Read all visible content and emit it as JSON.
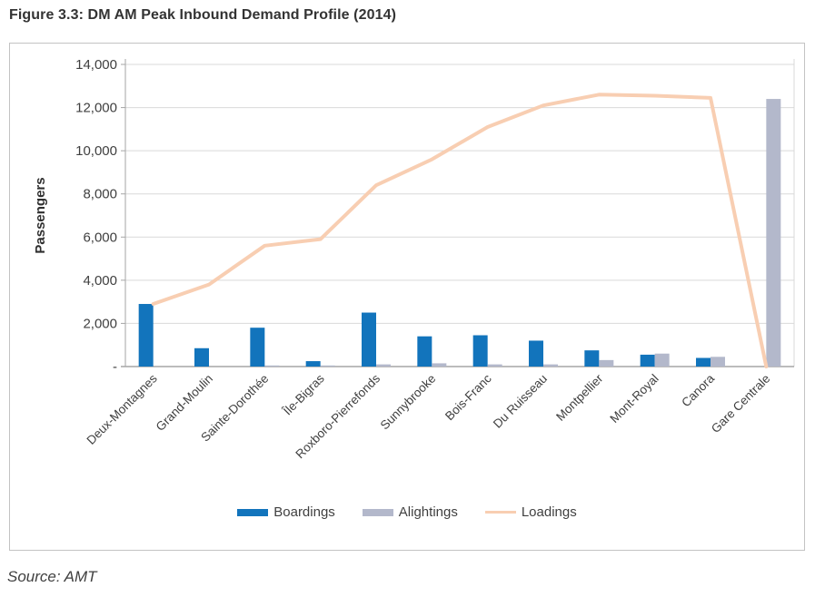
{
  "figure": {
    "title": "Figure 3.3: DM AM Peak Inbound Demand Profile (2014)",
    "source": "Source: AMT"
  },
  "colors": {
    "boardings": "#1274bc",
    "alightings": "#b3b8cb",
    "loadings": "#f8ceb2",
    "gridline": "#d9d9d9",
    "axis": "#a6a6a6",
    "text": "#3f3f3f"
  },
  "chart_data": {
    "type": "bar",
    "title": "Figure 3.3: DM AM Peak Inbound Demand Profile (2014)",
    "xlabel": "",
    "ylabel": "Passengers",
    "ylim": [
      0,
      14000
    ],
    "grid": true,
    "legend_position": "bottom",
    "categories": [
      "Deux-Montagnes",
      "Grand-Moulin",
      "Sainte-Dorothée",
      "Île-Bigras",
      "Roxboro-Pierrefonds",
      "Sunnybrooke",
      "Bois-Franc",
      "Du Ruisseau",
      "Montpellier",
      "Mont-Royal",
      "Canora",
      "Gare Centrale"
    ],
    "yticks": [
      {
        "value": 0,
        "label": "-"
      },
      {
        "value": 2000,
        "label": "2,000"
      },
      {
        "value": 4000,
        "label": "4,000"
      },
      {
        "value": 6000,
        "label": "6,000"
      },
      {
        "value": 8000,
        "label": "8,000"
      },
      {
        "value": 10000,
        "label": "10,000"
      },
      {
        "value": 12000,
        "label": "12,000"
      },
      {
        "value": 14000,
        "label": "14,000"
      }
    ],
    "series": [
      {
        "name": "Boardings",
        "kind": "bar",
        "color": "#1274bc",
        "values": [
          2900,
          850,
          1800,
          250,
          2500,
          1400,
          1450,
          1200,
          750,
          550,
          400,
          0
        ]
      },
      {
        "name": "Alightings",
        "kind": "bar",
        "color": "#b3b8cb",
        "values": [
          0,
          0,
          50,
          50,
          100,
          150,
          100,
          100,
          300,
          600,
          450,
          12400
        ]
      },
      {
        "name": "Loadings",
        "kind": "line",
        "color": "#f8ceb2",
        "values": [
          2900,
          3800,
          5600,
          5900,
          8400,
          9600,
          11100,
          12100,
          12600,
          12550,
          12450,
          0
        ]
      }
    ]
  }
}
